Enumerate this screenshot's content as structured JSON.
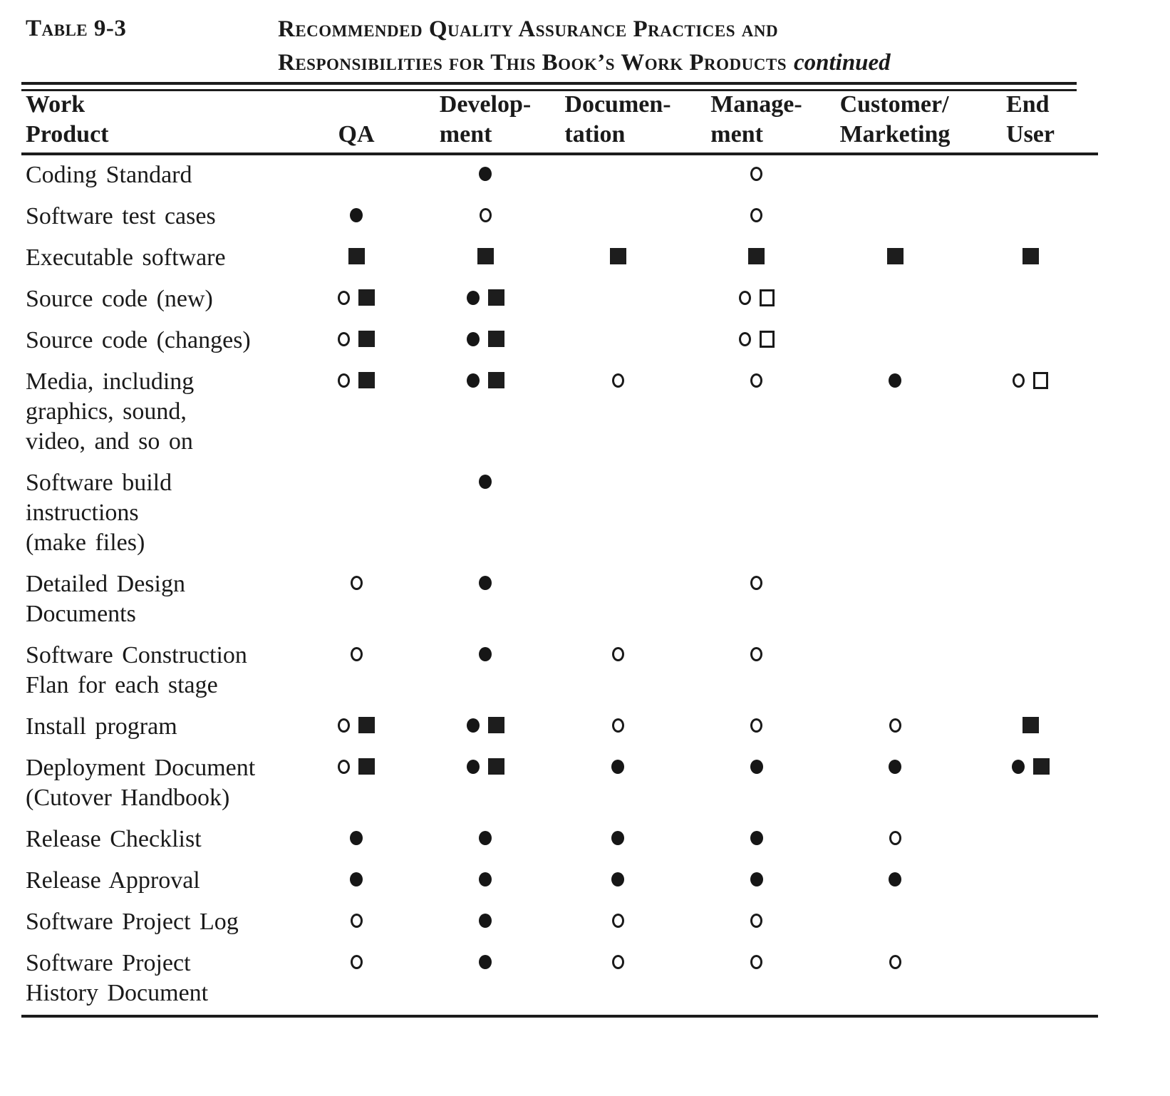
{
  "document": {
    "table_label": "Table 9-3",
    "title": {
      "line1": "Recommended Quality Assurance Practices and",
      "line2": "Responsibilities for This Book’s Work Products",
      "continued_note": "continued"
    }
  },
  "colors": {
    "ink": "#1a1a1a",
    "paper": "#ffffff"
  },
  "table": {
    "columns": [
      {
        "line1": "Work",
        "line2": "Product"
      },
      {
        "line1": "",
        "line2": "QA"
      },
      {
        "line1": "Develop-",
        "line2": "ment"
      },
      {
        "line1": "Documen-",
        "line2": "tation"
      },
      {
        "line1": "Manage-",
        "line2": "ment"
      },
      {
        "line1": "Customer/",
        "line2": "Marketing"
      },
      {
        "line1": "End",
        "line2": "User"
      }
    ],
    "symbol_legend": {
      "filled-circle": "●",
      "open-circle": "○",
      "filled-square": "■",
      "open-square": "□"
    },
    "rows": [
      {
        "label_lines": [
          "Coding Standard"
        ],
        "cells": [
          [],
          [
            "filled-circle"
          ],
          [],
          [
            "open-circle"
          ],
          [],
          []
        ]
      },
      {
        "label_lines": [
          "Software test cases"
        ],
        "cells": [
          [
            "filled-circle"
          ],
          [
            "open-circle"
          ],
          [],
          [
            "open-circle"
          ],
          [],
          []
        ]
      },
      {
        "label_lines": [
          "Executable software"
        ],
        "cells": [
          [
            "filled-square"
          ],
          [
            "filled-square"
          ],
          [
            "filled-square"
          ],
          [
            "filled-square"
          ],
          [
            "filled-square"
          ],
          [
            "filled-square"
          ]
        ]
      },
      {
        "label_lines": [
          "Source code (new)"
        ],
        "cells": [
          [
            "open-circle",
            "filled-square"
          ],
          [
            "filled-circle",
            "filled-square"
          ],
          [],
          [
            "open-circle",
            "open-square"
          ],
          [],
          []
        ]
      },
      {
        "label_lines": [
          "Source code (changes)"
        ],
        "cells": [
          [
            "open-circle",
            "filled-square"
          ],
          [
            "filled-circle",
            "filled-square"
          ],
          [],
          [
            "open-circle",
            "open-square"
          ],
          [],
          []
        ]
      },
      {
        "label_lines": [
          "Media, including",
          "graphics, sound,",
          "video, and so on"
        ],
        "cells": [
          [
            "open-circle",
            "filled-square"
          ],
          [
            "filled-circle",
            "filled-square"
          ],
          [
            "open-circle"
          ],
          [
            "open-circle"
          ],
          [
            "filled-circle"
          ],
          [
            "open-circle",
            "open-square"
          ]
        ]
      },
      {
        "label_lines": [
          "Software build",
          "instructions",
          "(make files)"
        ],
        "cells": [
          [],
          [
            "filled-circle"
          ],
          [],
          [],
          [],
          []
        ]
      },
      {
        "label_lines": [
          "Detailed Design",
          "Documents"
        ],
        "cells": [
          [
            "open-circle"
          ],
          [
            "filled-circle"
          ],
          [],
          [
            "open-circle"
          ],
          [],
          []
        ]
      },
      {
        "label_lines": [
          "Software Construction",
          "Flan for each stage"
        ],
        "cells": [
          [
            "open-circle"
          ],
          [
            "filled-circle"
          ],
          [
            "open-circle"
          ],
          [
            "open-circle"
          ],
          [],
          []
        ]
      },
      {
        "label_lines": [
          "Install program"
        ],
        "cells": [
          [
            "open-circle",
            "filled-square"
          ],
          [
            "filled-circle",
            "filled-square"
          ],
          [
            "open-circle"
          ],
          [
            "open-circle"
          ],
          [
            "open-circle"
          ],
          [
            "filled-square"
          ]
        ]
      },
      {
        "label_lines": [
          "Deployment Document",
          "(Cutover Handbook)"
        ],
        "cells": [
          [
            "open-circle",
            "filled-square"
          ],
          [
            "filled-circle",
            "filled-square"
          ],
          [
            "filled-circle"
          ],
          [
            "filled-circle"
          ],
          [
            "filled-circle"
          ],
          [
            "filled-circle",
            "filled-square"
          ]
        ]
      },
      {
        "label_lines": [
          "Release Checklist"
        ],
        "cells": [
          [
            "filled-circle"
          ],
          [
            "filled-circle"
          ],
          [
            "filled-circle"
          ],
          [
            "filled-circle"
          ],
          [
            "open-circle"
          ],
          []
        ]
      },
      {
        "label_lines": [
          "Release Approval"
        ],
        "cells": [
          [
            "filled-circle"
          ],
          [
            "filled-circle"
          ],
          [
            "filled-circle"
          ],
          [
            "filled-circle"
          ],
          [
            "filled-circle"
          ],
          []
        ]
      },
      {
        "label_lines": [
          "Software Project Log"
        ],
        "cells": [
          [
            "open-circle"
          ],
          [
            "filled-circle"
          ],
          [
            "open-circle"
          ],
          [
            "open-circle"
          ],
          [],
          []
        ]
      },
      {
        "label_lines": [
          "Software Project",
          "History Document"
        ],
        "cells": [
          [
            "open-circle"
          ],
          [
            "filled-circle"
          ],
          [
            "open-circle"
          ],
          [
            "open-circle"
          ],
          [
            "open-circle"
          ],
          []
        ]
      }
    ]
  }
}
